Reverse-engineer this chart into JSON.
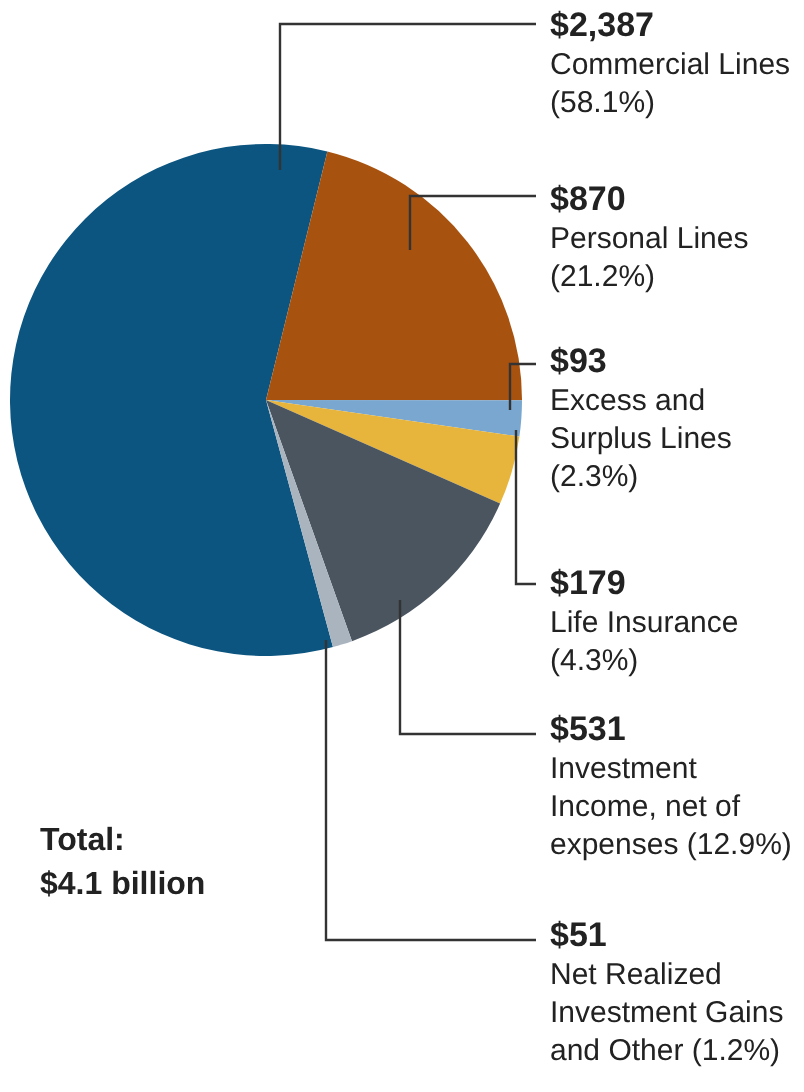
{
  "chart_data": {
    "type": "pie",
    "categories": [
      "Commercial Lines",
      "Personal Lines",
      "Excess and Surplus Lines",
      "Life Insurance",
      "Investment Income, net of expenses",
      "Net Realized Investment Gains and Other"
    ],
    "values": [
      2387,
      870,
      93,
      179,
      531,
      51
    ],
    "value_labels": [
      "$2,387",
      "$870",
      "$93",
      "$179",
      "$531",
      "$51"
    ],
    "colors": [
      "#0b5580",
      "#a8520f",
      "#7aa7cf",
      "#e8b53c",
      "#4a5560",
      "#a9b4bf"
    ],
    "annotations": [
      "(58.1%)",
      "(21.2%)",
      "(2.3%)",
      "(4.3%)",
      "(12.9%)",
      "(1.2%)",
      "Total:\n$4.1 billion"
    ],
    "legend": false
  }
}
